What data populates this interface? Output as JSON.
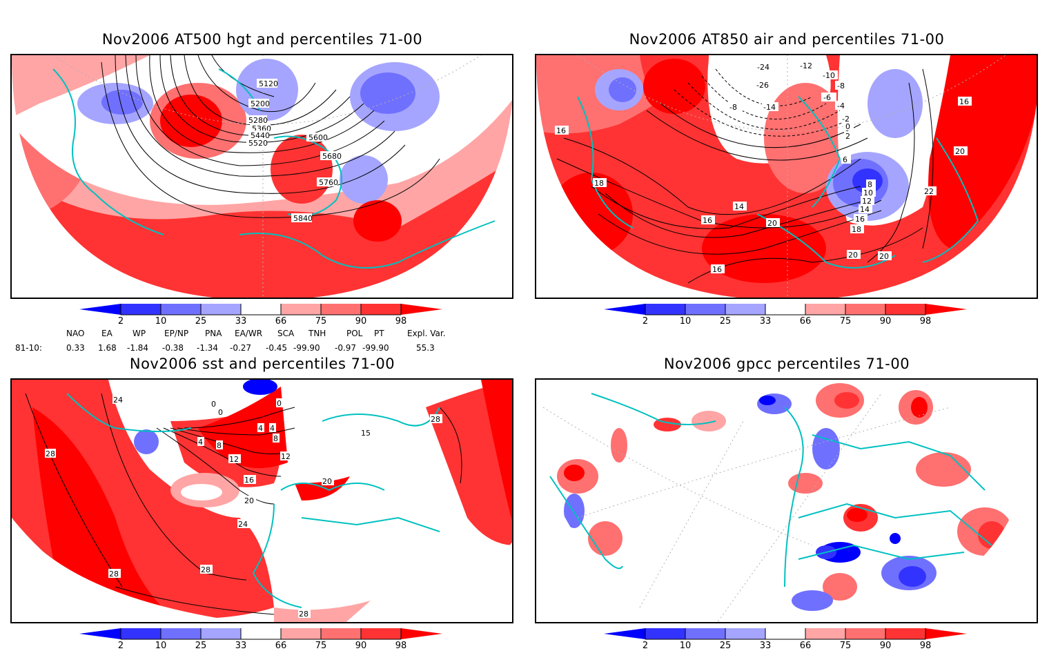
{
  "colors": {
    "p_lt2": "#0000ff",
    "p_2_10": "#3333ff",
    "p_10_25": "#7070ff",
    "p_25_33": "#a5a5ff",
    "p_33_66": "#ffffff",
    "p_66_75": "#ffa5a5",
    "p_75_90": "#ff7070",
    "p_90_98": "#ff3333",
    "p_gt98": "#ff0000",
    "coast": "#00c0c0",
    "contour": "#000000",
    "grid": "#b0b0b0"
  },
  "colorbar": {
    "ticks": [
      "2",
      "10",
      "25",
      "33",
      "66",
      "75",
      "90",
      "98"
    ]
  },
  "indices": {
    "headers": [
      "NAO",
      "EA",
      "WP",
      "EP/NP",
      "PNA",
      "EA/WR",
      "SCA",
      "TNH",
      "POL",
      "PT",
      "Expl. Var."
    ],
    "row_label": "81-10:",
    "values": [
      "0.33",
      "1.68",
      "-1.84",
      "-0.38",
      "-1.34",
      "-0.27",
      "-0.45",
      "-99.90",
      "-0.97",
      "-99.90",
      "55.3"
    ]
  },
  "chart_data": [
    {
      "type": "heatmap",
      "title": "Nov2006 AT500 hgt and percentiles 71-00",
      "projection": "polar stereographic (Northern Hemisphere sector)",
      "shading": "percentiles",
      "contour_variable": "500 hPa geopotential height (m)",
      "contour_labels": [
        "5120",
        "5200",
        "5280",
        "5360",
        "5440",
        "5520",
        "5600",
        "5680",
        "5760",
        "5840"
      ],
      "colorbar_ticks": [
        2,
        10,
        25,
        33,
        66,
        75,
        90,
        98
      ]
    },
    {
      "type": "heatmap",
      "title": "Nov2006 AT850 air and percentiles 71-00",
      "projection": "polar stereographic (Northern Hemisphere sector)",
      "shading": "percentiles",
      "contour_variable": "850 hPa air temperature (C)",
      "contour_labels": [
        "-24",
        "-26",
        "-14",
        "-12",
        "-10",
        "-8",
        "-8",
        "-6",
        "-4",
        "-2",
        "0",
        "2",
        "6",
        "8",
        "10",
        "12",
        "14",
        "14",
        "16",
        "16",
        "16",
        "16",
        "16",
        "18",
        "18",
        "20",
        "20",
        "20",
        "20",
        "22"
      ],
      "colorbar_ticks": [
        2,
        10,
        25,
        33,
        66,
        75,
        90,
        98
      ]
    },
    {
      "type": "heatmap",
      "title": "Nov2006 sst and percentiles 71-00",
      "projection": "polar stereographic (Northern Hemisphere sector)",
      "shading": "percentiles",
      "contour_variable": "sea surface temperature (C)",
      "contour_labels": [
        "24",
        "28",
        "0",
        "0",
        "0",
        "4",
        "4",
        "4",
        "8",
        "8",
        "12",
        "12",
        "15",
        "16",
        "20",
        "20",
        "24",
        "28",
        "28",
        "28",
        "28"
      ],
      "colorbar_ticks": [
        2,
        10,
        25,
        33,
        66,
        75,
        90,
        98
      ]
    },
    {
      "type": "heatmap",
      "title": "Nov2006 gpcc percentiles 71-00",
      "projection": "polar stereographic (Northern Hemisphere sector)",
      "shading": "percentiles",
      "contour_variable": "",
      "contour_labels": [],
      "colorbar_ticks": [
        2,
        10,
        25,
        33,
        66,
        75,
        90,
        98
      ]
    }
  ]
}
